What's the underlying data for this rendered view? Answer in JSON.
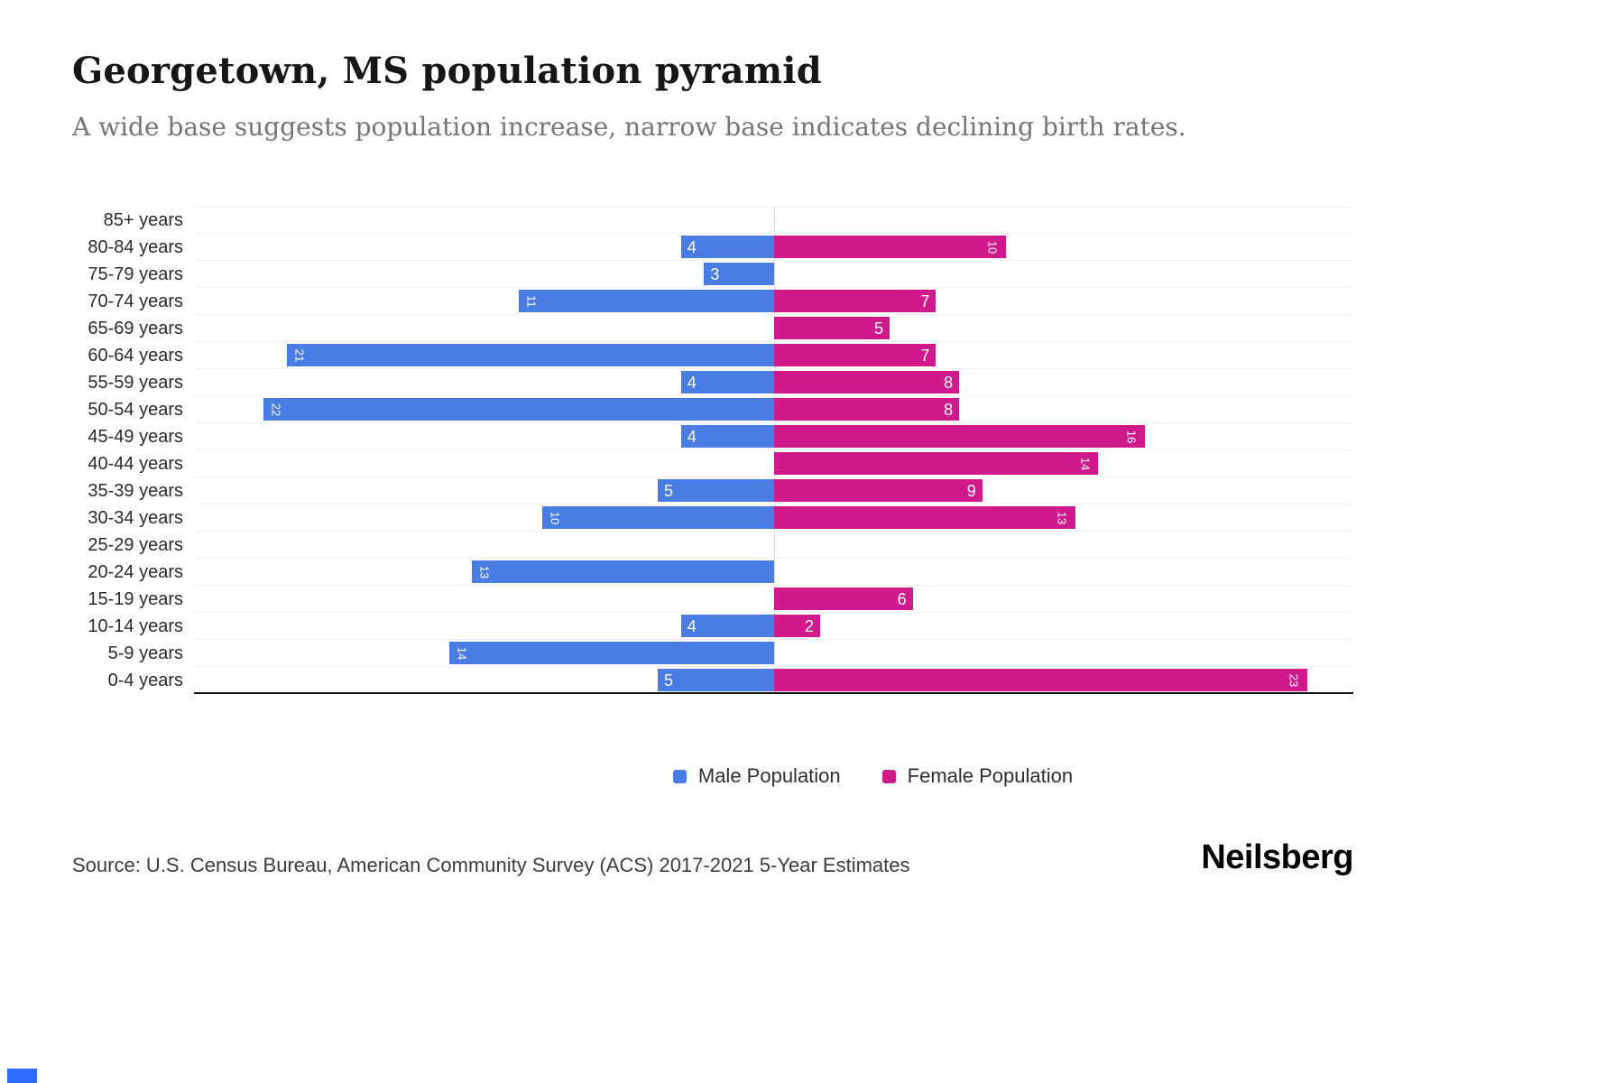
{
  "page": {
    "accent_color": "#2f6bff"
  },
  "chart_data": {
    "type": "bar",
    "variant": "population-pyramid",
    "title": "Georgetown, MS population pyramid",
    "subtitle": "A wide base suggests population increase, narrow base indicates declining birth rates.",
    "categories": [
      "85+ years",
      "80-84 years",
      "75-79 years",
      "70-74 years",
      "65-69 years",
      "60-64 years",
      "55-59 years",
      "50-54 years",
      "45-49 years",
      "40-44 years",
      "35-39 years",
      "30-34 years",
      "25-29 years",
      "20-24 years",
      "15-19 years",
      "10-14 years",
      "5-9 years",
      "0-4 years"
    ],
    "series": [
      {
        "name": "Male Population",
        "color": "#4a7de4",
        "values": [
          0,
          4,
          3,
          11,
          0,
          21,
          4,
          22,
          4,
          0,
          5,
          10,
          0,
          13,
          0,
          4,
          14,
          5
        ]
      },
      {
        "name": "Female Population",
        "color": "#d01a8c",
        "values": [
          0,
          10,
          0,
          7,
          5,
          7,
          8,
          8,
          16,
          14,
          9,
          13,
          0,
          0,
          6,
          2,
          0,
          23
        ]
      }
    ],
    "axis_max": 25,
    "grid": true,
    "legend_position": "bottom",
    "source": "Source: U.S. Census Bureau, American Community Survey (ACS) 2017-2021 5-Year Estimates",
    "brand": "Neilsberg"
  }
}
